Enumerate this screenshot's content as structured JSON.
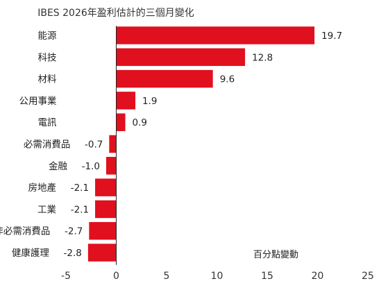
{
  "chart_data": {
    "type": "bar",
    "orientation": "horizontal",
    "title": "IBES 2026年盈利估計的三個月變化",
    "unit_label": "百分點變動",
    "categories": [
      "能源",
      "科技",
      "材料",
      "公用事業",
      "電訊",
      "必需消費品",
      "金融",
      "房地產",
      "工業",
      "非必需消費品",
      "健康護理"
    ],
    "values": [
      19.7,
      12.8,
      9.6,
      1.9,
      0.9,
      -0.7,
      -1.0,
      -2.1,
      -2.1,
      -2.7,
      -2.8
    ],
    "value_labels": [
      "19.7",
      "12.8",
      "9.6",
      "1.9",
      "0.9",
      "-0.7",
      "-1.0",
      "-2.1",
      "-2.1",
      "-2.7",
      "-2.8"
    ],
    "xlim": [
      -5,
      25
    ],
    "xticks": [
      "-5",
      "0",
      "5",
      "10",
      "15",
      "20",
      "25"
    ],
    "xtick_values": [
      -5,
      0,
      5,
      10,
      15,
      20,
      25
    ],
    "grid": false,
    "bar_color": "#e0101e"
  }
}
